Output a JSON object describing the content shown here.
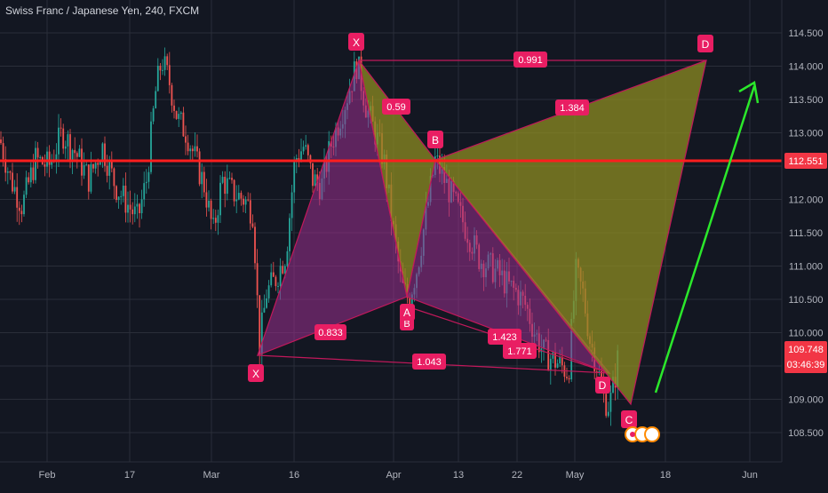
{
  "header": {
    "title": "Swiss Franc / Japanese Yen, 240, FXCM"
  },
  "colors": {
    "background": "#131722",
    "grid": "#2a2e39",
    "axis_text": "#b2b5be",
    "candle_up": "#26a69a",
    "candle_down": "#ef5350",
    "pattern_fill_purple": "#9c2f8f",
    "pattern_fill_olive": "#8e8c22",
    "pattern_line": "#c2185b",
    "label_bg": "#e91e63",
    "label_text": "#ffffff",
    "hline": "#ff1e1e",
    "price_tag": "#f23645",
    "arrow": "#2be82b"
  },
  "price_axis": {
    "ticks": [
      "114.500",
      "114.000",
      "113.500",
      "113.000",
      "112.551",
      "112.000",
      "111.500",
      "111.000",
      "110.500",
      "110.000",
      "109.748",
      "109.000",
      "108.500"
    ],
    "current_price": "109.748",
    "countdown": "03:46:39",
    "hline_price": "112.551",
    "hline_label": "112.551"
  },
  "time_axis": {
    "ticks": [
      "Feb",
      "17",
      "Mar",
      "16",
      "Apr",
      "13",
      "22",
      "May",
      "18",
      "Jun"
    ]
  },
  "chart_data": {
    "type": "candlestick",
    "title": "Swiss Franc / Japanese Yen, 240, FXCM",
    "xlabel": "",
    "ylabel": "",
    "ylim": [
      108.15,
      114.75
    ],
    "grid": true,
    "x_ticks": [
      "Feb",
      "17",
      "Mar",
      "16",
      "Apr",
      "13",
      "22",
      "May",
      "18",
      "Jun"
    ],
    "y_ticks": [
      108.5,
      109.0,
      109.5,
      110.0,
      110.5,
      111.0,
      111.5,
      112.0,
      112.5,
      113.0,
      113.5,
      114.0,
      114.5
    ],
    "price_path": [
      [
        0,
        112.9
      ],
      [
        12,
        112.3
      ],
      [
        25,
        111.9
      ],
      [
        40,
        112.6
      ],
      [
        55,
        112.5
      ],
      [
        70,
        113.0
      ],
      [
        85,
        112.7
      ],
      [
        100,
        112.3
      ],
      [
        115,
        112.8
      ],
      [
        130,
        112.2
      ],
      [
        145,
        111.9
      ],
      [
        155,
        111.7
      ],
      [
        165,
        112.3
      ],
      [
        175,
        113.6
      ],
      [
        182,
        114.1
      ],
      [
        190,
        113.8
      ],
      [
        200,
        113.2
      ],
      [
        210,
        113.0
      ],
      [
        220,
        112.6
      ],
      [
        230,
        112.2
      ],
      [
        240,
        111.5
      ],
      [
        250,
        112.3
      ],
      [
        262,
        112.1
      ],
      [
        275,
        112.0
      ],
      [
        285,
        111.8
      ],
      [
        292,
        109.8
      ],
      [
        300,
        110.6
      ],
      [
        310,
        110.8
      ],
      [
        322,
        111.2
      ],
      [
        332,
        112.6
      ],
      [
        342,
        112.8
      ],
      [
        352,
        112.3
      ],
      [
        362,
        112.2
      ],
      [
        372,
        112.8
      ],
      [
        382,
        113.2
      ],
      [
        392,
        113.6
      ],
      [
        402,
        114.05
      ],
      [
        412,
        113.4
      ],
      [
        422,
        113.0
      ],
      [
        432,
        112.6
      ],
      [
        442,
        111.6
      ],
      [
        452,
        110.7
      ],
      [
        460,
        110.5
      ],
      [
        470,
        111.0
      ],
      [
        480,
        111.8
      ],
      [
        490,
        112.6
      ],
      [
        500,
        112.3
      ],
      [
        510,
        112.0
      ],
      [
        520,
        111.7
      ],
      [
        530,
        111.4
      ],
      [
        540,
        111.1
      ],
      [
        550,
        111.0
      ],
      [
        560,
        110.9
      ],
      [
        572,
        110.7
      ],
      [
        582,
        110.6
      ],
      [
        592,
        110.4
      ],
      [
        602,
        110.0
      ],
      [
        612,
        109.7
      ],
      [
        622,
        109.6
      ],
      [
        632,
        109.5
      ],
      [
        640,
        109.4
      ],
      [
        648,
        110.9
      ],
      [
        656,
        110.6
      ],
      [
        664,
        109.9
      ],
      [
        672,
        109.5
      ],
      [
        680,
        109.0
      ],
      [
        686,
        108.9
      ],
      [
        692,
        109.3
      ],
      [
        697,
        109.75
      ]
    ],
    "harmonic_patterns": [
      {
        "color": "purple",
        "points": [
          {
            "name": "X",
            "x": "Mar 9",
            "y": 109.65
          },
          {
            "name": "A",
            "x": "Mar 25",
            "y": 114.05
          },
          {
            "name": "B",
            "x": "Apr 2",
            "y": 110.55
          },
          {
            "name": "C",
            "x": "May 6",
            "y": 109.4
          },
          {
            "name": "D",
            "x": "May 6",
            "y": 109.4
          }
        ]
      },
      {
        "color": "olive",
        "points": [
          {
            "name": "X",
            "x": "Mar 25",
            "y": 114.05
          },
          {
            "name": "A",
            "x": "Apr 2",
            "y": 110.55
          },
          {
            "name": "B",
            "x": "Apr 8",
            "y": 112.6
          },
          {
            "name": "C",
            "x": "May 8",
            "y": 108.9
          },
          {
            "name": "D",
            "x": "May 22",
            "y": 114.05
          }
        ]
      }
    ],
    "ratio_labels": [
      "0.833",
      "1.043",
      "1.423",
      "1.771",
      "0.59",
      "1.384",
      "0.991"
    ],
    "horizontal_line": 112.551,
    "last_price": 109.748,
    "projection": {
      "from": 109.05,
      "to": 113.8,
      "direction": "up"
    }
  },
  "pattern_points": {
    "X1": "X",
    "A1": "A",
    "B1": "B",
    "D1": "D",
    "X2": "X",
    "B2": "B",
    "C2": "C",
    "D2": "D"
  },
  "ratios": {
    "r0833": "0.833",
    "r1043": "1.043",
    "r1423": "1.423",
    "r1771": "1.771",
    "r059": "0.59",
    "r1384": "1.384",
    "r0991": "0.991"
  }
}
